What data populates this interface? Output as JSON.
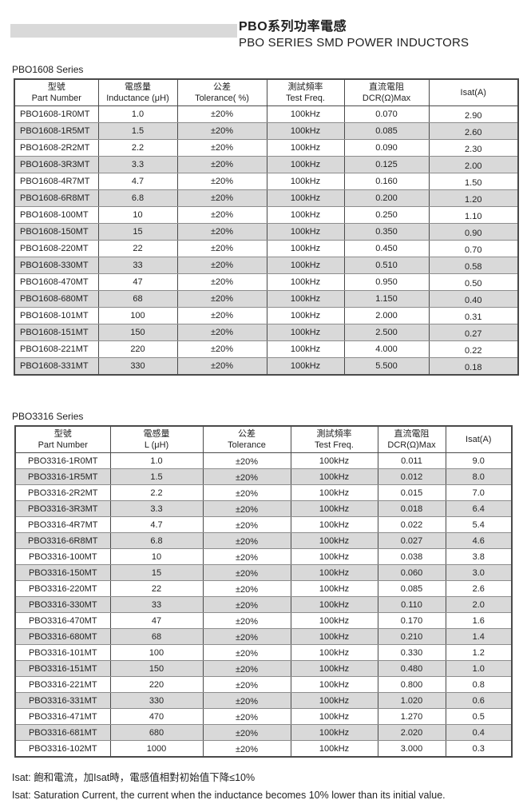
{
  "header": {
    "title_zh": "PBO系列功率電感",
    "title_en": "PBO SERIES SMD POWER INDUCTORS"
  },
  "colors": {
    "brand_bar_gray": "#d9d9d9",
    "row_alt_gray": "#d9d9d9",
    "border_dark": "#4a4a4a",
    "border_light": "#8c8c8c",
    "text": "#1f1f1f"
  },
  "tables": [
    {
      "section_label": "PBO1608 Series",
      "columns": [
        {
          "zh": "型號",
          "en": "Part Number"
        },
        {
          "zh": "電感量",
          "en": "Inductance (μH)"
        },
        {
          "zh": "公差",
          "en": "Tolerance( %)"
        },
        {
          "zh": "測試頻率",
          "en": "Test Freq."
        },
        {
          "zh": "直流電阻",
          "en": "DCR(Ω)Max"
        },
        {
          "zh": "",
          "en": "Isat(A)"
        }
      ],
      "rows": [
        [
          "PBO1608-1R0MT",
          "1.0",
          "±20%",
          "100kHz",
          "0.070",
          "2.90"
        ],
        [
          "PBO1608-1R5MT",
          "1.5",
          "±20%",
          "100kHz",
          "0.085",
          "2.60"
        ],
        [
          "PBO1608-2R2MT",
          "2.2",
          "±20%",
          "100kHz",
          "0.090",
          "2.30"
        ],
        [
          "PBO1608-3R3MT",
          "3.3",
          "±20%",
          "100kHz",
          "0.125",
          "2.00"
        ],
        [
          "PBO1608-4R7MT",
          "4.7",
          "±20%",
          "100kHz",
          "0.160",
          "1.50"
        ],
        [
          "PBO1608-6R8MT",
          "6.8",
          "±20%",
          "100kHz",
          "0.200",
          "1.20"
        ],
        [
          "PBO1608-100MT",
          "10",
          "±20%",
          "100kHz",
          "0.250",
          "1.10"
        ],
        [
          "PBO1608-150MT",
          "15",
          "±20%",
          "100kHz",
          "0.350",
          "0.90"
        ],
        [
          "PBO1608-220MT",
          "22",
          "±20%",
          "100kHz",
          "0.450",
          "0.70"
        ],
        [
          "PBO1608-330MT",
          "33",
          "±20%",
          "100kHz",
          "0.510",
          "0.58"
        ],
        [
          "PBO1608-470MT",
          "47",
          "±20%",
          "100kHz",
          "0.950",
          "0.50"
        ],
        [
          "PBO1608-680MT",
          "68",
          "±20%",
          "100kHz",
          "1.150",
          "0.40"
        ],
        [
          "PBO1608-101MT",
          "100",
          "±20%",
          "100kHz",
          "2.000",
          "0.31"
        ],
        [
          "PBO1608-151MT",
          "150",
          "±20%",
          "100kHz",
          "2.500",
          "0.27"
        ],
        [
          "PBO1608-221MT",
          "220",
          "±20%",
          "100kHz",
          "4.000",
          "0.22"
        ],
        [
          "PBO1608-331MT",
          "330",
          "±20%",
          "100kHz",
          "5.500",
          "0.18"
        ]
      ]
    },
    {
      "section_label": "PBO3316 Series",
      "columns": [
        {
          "zh": "型號",
          "en": "Part Number"
        },
        {
          "zh": "電感量",
          "en": "L (μH)"
        },
        {
          "zh": "公差",
          "en": "Tolerance"
        },
        {
          "zh": "測試頻率",
          "en": "Test Freq."
        },
        {
          "zh": "直流電阻",
          "en": "DCR(Ω)Max"
        },
        {
          "zh": "",
          "en": "Isat(A)"
        }
      ],
      "rows": [
        [
          "PBO3316-1R0MT",
          "1.0",
          "±20%",
          "100kHz",
          "0.011",
          "9.0"
        ],
        [
          "PBO3316-1R5MT",
          "1.5",
          "±20%",
          "100kHz",
          "0.012",
          "8.0"
        ],
        [
          "PBO3316-2R2MT",
          "2.2",
          "±20%",
          "100kHz",
          "0.015",
          "7.0"
        ],
        [
          "PBO3316-3R3MT",
          "3.3",
          "±20%",
          "100kHz",
          "0.018",
          "6.4"
        ],
        [
          "PBO3316-4R7MT",
          "4.7",
          "±20%",
          "100kHz",
          "0.022",
          "5.4"
        ],
        [
          "PBO3316-6R8MT",
          "6.8",
          "±20%",
          "100kHz",
          "0.027",
          "4.6"
        ],
        [
          "PBO3316-100MT",
          "10",
          "±20%",
          "100kHz",
          "0.038",
          "3.8"
        ],
        [
          "PBO3316-150MT",
          "15",
          "±20%",
          "100kHz",
          "0.060",
          "3.0"
        ],
        [
          "PBO3316-220MT",
          "22",
          "±20%",
          "100kHz",
          "0.085",
          "2.6"
        ],
        [
          "PBO3316-330MT",
          "33",
          "±20%",
          "100kHz",
          "0.110",
          "2.0"
        ],
        [
          "PBO3316-470MT",
          "47",
          "±20%",
          "100kHz",
          "0.170",
          "1.6"
        ],
        [
          "PBO3316-680MT",
          "68",
          "±20%",
          "100kHz",
          "0.210",
          "1.4"
        ],
        [
          "PBO3316-101MT",
          "100",
          "±20%",
          "100kHz",
          "0.330",
          "1.2"
        ],
        [
          "PBO3316-151MT",
          "150",
          "±20%",
          "100kHz",
          "0.480",
          "1.0"
        ],
        [
          "PBO3316-221MT",
          "220",
          "±20%",
          "100kHz",
          "0.800",
          "0.8"
        ],
        [
          "PBO3316-331MT",
          "330",
          "±20%",
          "100kHz",
          "1.020",
          "0.6"
        ],
        [
          "PBO3316-471MT",
          "470",
          "±20%",
          "100kHz",
          "1.270",
          "0.5"
        ],
        [
          "PBO3316-681MT",
          "680",
          "±20%",
          "100kHz",
          "2.020",
          "0.4"
        ],
        [
          "PBO3316-102MT",
          "1000",
          "±20%",
          "100kHz",
          "3.000",
          "0.3"
        ]
      ]
    }
  ],
  "notes": [
    "Isat: 飽和電流，加Isat時，電感值相對初始值下降≤10%",
    "Isat: Saturation Current, the current when the inductance becomes 10% lower than its initial value."
  ]
}
